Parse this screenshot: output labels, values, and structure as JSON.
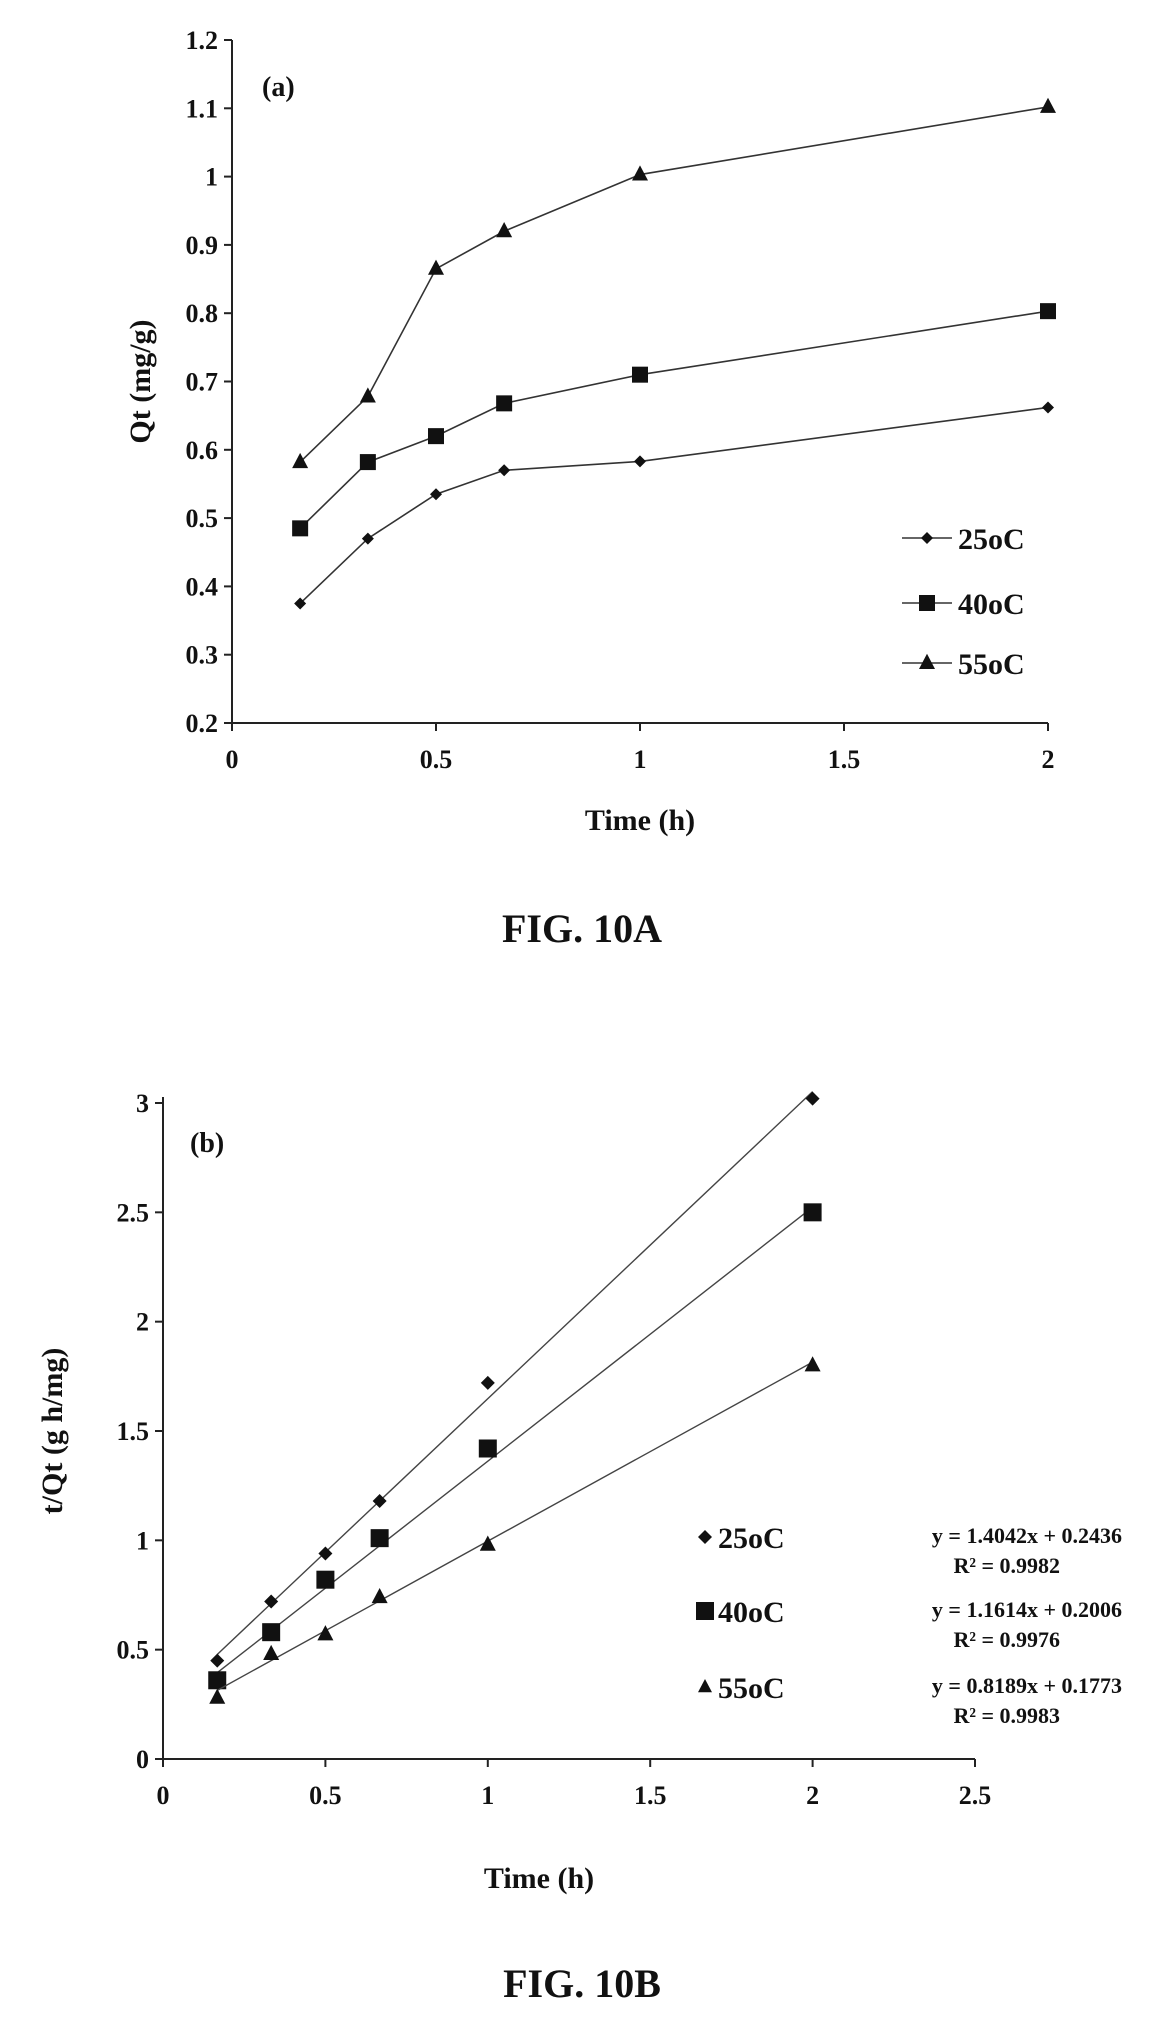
{
  "chart_data": [
    {
      "type": "line",
      "panel_label": "(a)",
      "xlabel": "Time (h)",
      "ylabel": "Qt (mg/g)",
      "xlim": [
        0,
        2
      ],
      "ylim": [
        0.2,
        1.2
      ],
      "xticks": [
        "0",
        "0.5",
        "1",
        "1.5",
        "2"
      ],
      "yticks": [
        "0.2",
        "0.3",
        "0.4",
        "0.5",
        "0.6",
        "0.7",
        "0.8",
        "0.9",
        "1",
        "1.1",
        "1.2"
      ],
      "legend_position": "bottom-right",
      "x": [
        0.167,
        0.333,
        0.5,
        0.667,
        1,
        2
      ],
      "series": [
        {
          "name": "25oC",
          "marker": "diamond",
          "values": [
            0.375,
            0.47,
            0.535,
            0.57,
            0.583,
            0.662
          ]
        },
        {
          "name": "40oC",
          "marker": "square",
          "values": [
            0.485,
            0.582,
            0.62,
            0.668,
            0.71,
            0.803
          ]
        },
        {
          "name": "55oC",
          "marker": "triangle",
          "values": [
            0.582,
            0.678,
            0.865,
            0.92,
            1.003,
            1.102
          ]
        }
      ],
      "caption": "FIG. 10A"
    },
    {
      "type": "scatter",
      "panel_label": "(b)",
      "xlabel": "Time (h)",
      "ylabel": "t/Qt (g h/mg)",
      "xlim": [
        0,
        2.5
      ],
      "ylim": [
        0,
        3
      ],
      "xticks": [
        "0",
        "0.5",
        "1",
        "1.5",
        "2",
        "2.5"
      ],
      "yticks": [
        "0",
        "0.5",
        "1",
        "1.5",
        "2",
        "2.5",
        "3"
      ],
      "legend_position": "right",
      "x": [
        0.167,
        0.333,
        0.5,
        0.667,
        1,
        2
      ],
      "series": [
        {
          "name": "25oC",
          "marker": "diamond",
          "values": [
            0.45,
            0.72,
            0.94,
            1.18,
            1.72,
            3.02
          ],
          "fit_slope": 1.4042,
          "fit_intercept": 0.2436,
          "equation": "y = 1.4042x + 0.2436",
          "r2": "R² = 0.9982"
        },
        {
          "name": "40oC",
          "marker": "square",
          "values": [
            0.36,
            0.58,
            0.82,
            1.01,
            1.42,
            2.5
          ],
          "fit_slope": 1.1614,
          "fit_intercept": 0.2006,
          "equation": "y = 1.1614x + 0.2006",
          "r2": "R² = 0.9976"
        },
        {
          "name": "55oC",
          "marker": "triangle",
          "values": [
            0.28,
            0.48,
            0.57,
            0.74,
            0.98,
            1.8
          ],
          "fit_slope": 0.8189,
          "fit_intercept": 0.1773,
          "equation": "y = 0.8189x + 0.1773",
          "r2": "R² = 0.9983"
        }
      ],
      "caption": "FIG. 10B"
    }
  ]
}
